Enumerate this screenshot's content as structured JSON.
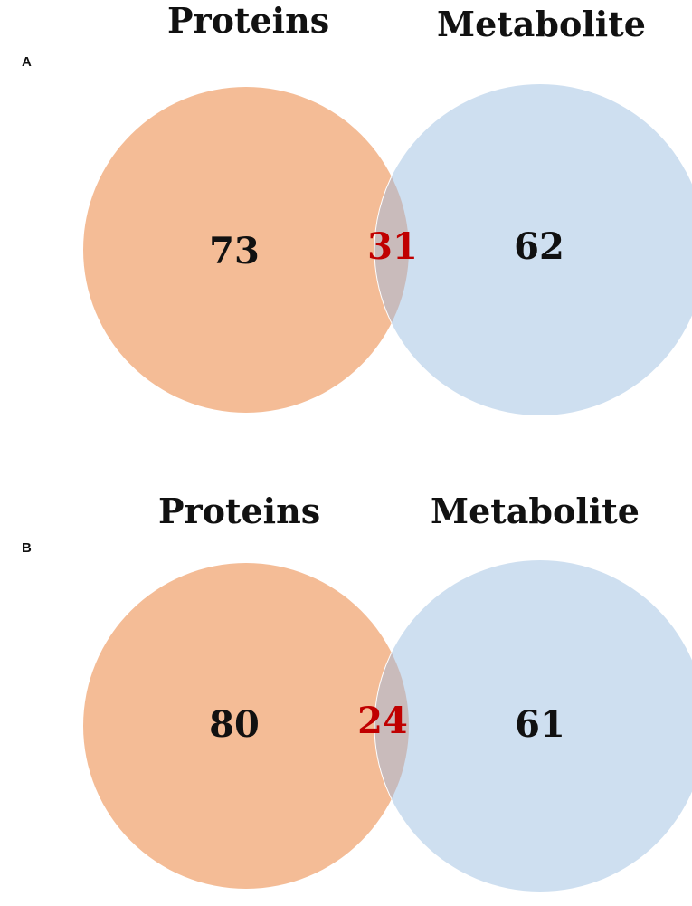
{
  "colors": {
    "left_set": "#f4bc96",
    "right_set": "#cedff0",
    "overlap": "#c9bbbb",
    "count_text": "#111111",
    "overlap_text": "#c00000"
  },
  "panels": [
    {
      "label": "A",
      "left_title": "Proteins",
      "right_title": "Metabolite",
      "left_only": "73",
      "overlap": "31",
      "right_only": "62"
    },
    {
      "label": "B",
      "left_title": "Proteins",
      "right_title": "Metabolite",
      "left_only": "80",
      "overlap": "24",
      "right_only": "61"
    }
  ]
}
